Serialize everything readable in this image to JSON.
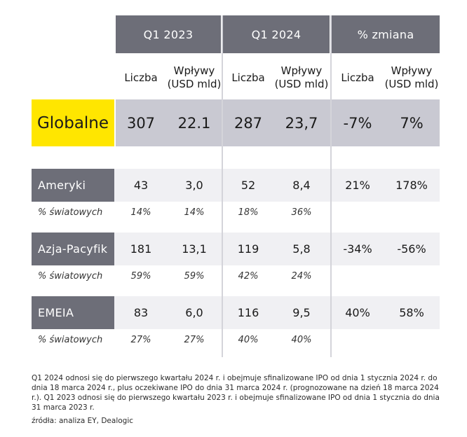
{
  "headers": {
    "q1_2023": "Q1 2023",
    "q1_2024": "Q1 2024",
    "change": "% zmiana"
  },
  "subheaders": {
    "count": "Liczba",
    "proceeds_line1": "Wpływy",
    "proceeds_line2": "(USD mld)"
  },
  "global": {
    "label": "Globalne",
    "values": [
      "307",
      "22.1",
      "287",
      "23,7",
      "-7%",
      "7%"
    ]
  },
  "regions": [
    {
      "label": "Ameryki",
      "values": [
        "43",
        "3,0",
        "52",
        "8,4",
        "21%",
        "178%"
      ],
      "share_label": "% światowych",
      "shares": [
        "14%",
        "14%",
        "18%",
        "36%"
      ]
    },
    {
      "label": "Azja-Pacyfik",
      "values": [
        "181",
        "13,1",
        "119",
        "5,8",
        "-34%",
        "-56%"
      ],
      "share_label": "% światowych",
      "shares": [
        "59%",
        "59%",
        "42%",
        "24%"
      ]
    },
    {
      "label": "EMEIA",
      "values": [
        "83",
        "6,0",
        "116",
        "9,5",
        "40%",
        "58%"
      ],
      "share_label": "% światowych",
      "shares": [
        "27%",
        "27%",
        "40%",
        "40%"
      ]
    }
  ],
  "footnote": "Q1 2024 odnosi się do pierwszego kwartału 2024 r. i obejmuje sfinalizowane IPO od dnia 1 stycznia 2024 r. do dnia 18 marca 2024 r., plus oczekiwane IPO do dnia 31 marca 2024 r. (prognozowane na dzień 18 marca 2024 r.). Q1 2023 odnosi się do pierwszego kwartału 2023 r. i obejmuje sfinalizowane IPO od dnia 1 stycznia do dnia 31 marca 2023 r.",
  "source": "źródła: analiza EY, Dealogic",
  "colors": {
    "header_bg": "#6d6e78",
    "global_bg": "#c9c9d2",
    "accent_yellow": "#ffe600",
    "band_bg": "#f0f0f3"
  }
}
